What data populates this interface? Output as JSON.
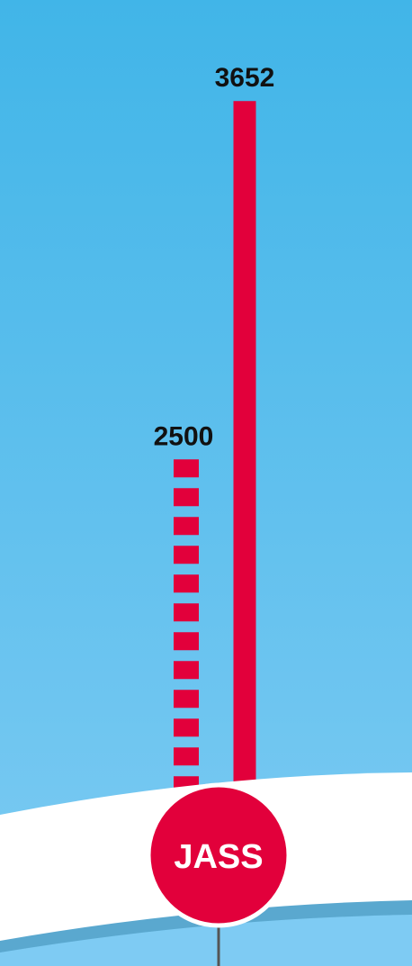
{
  "chart_data": {
    "type": "bar",
    "categories": [
      null,
      null
    ],
    "values": [
      2500,
      3652
    ],
    "color": "#e2003b",
    "bar_styles": [
      "dashed",
      "solid"
    ],
    "annotations": [
      "JASS"
    ]
  }
}
